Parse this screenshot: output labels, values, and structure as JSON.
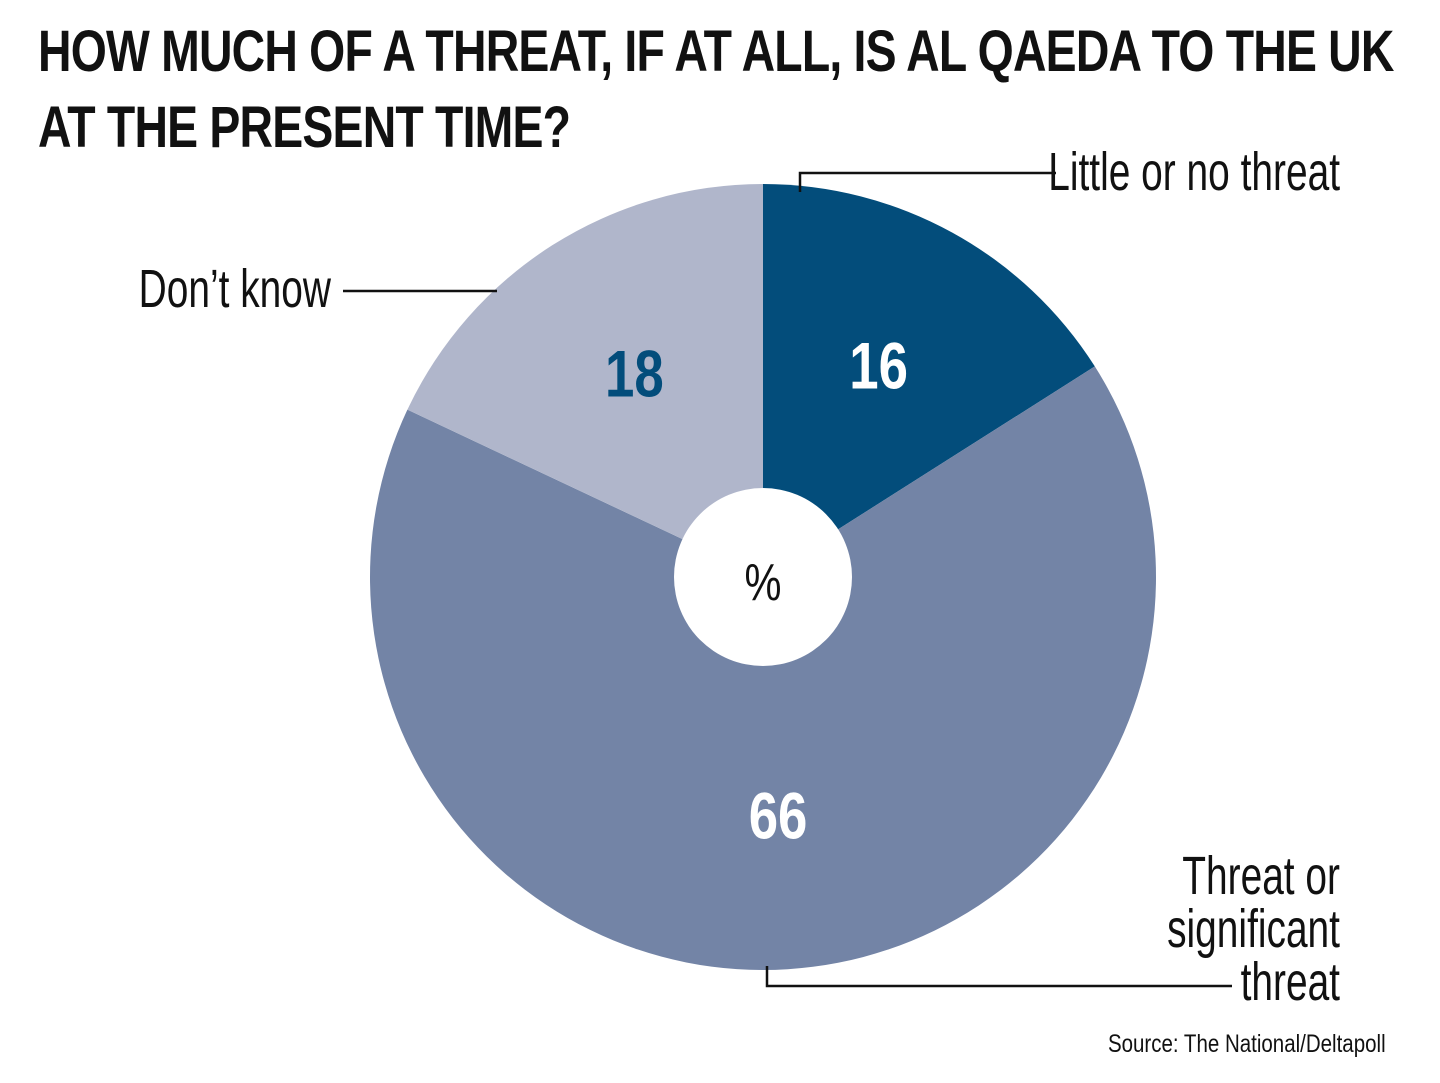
{
  "chart_data": {
    "type": "pie",
    "title": "HOW MUCH OF A THREAT, IF AT ALL, IS AL QAEDA TO THE UK AT THE PRESENT TIME?",
    "center_label": "%",
    "slices": [
      {
        "label": "Little or no threat",
        "value": 16,
        "value_label": "16",
        "color": "#034d7b",
        "label_color": "#ffffff"
      },
      {
        "label": "Threat or significant threat",
        "value": 66,
        "value_label": "66",
        "color": "#7384a6",
        "label_color": "#ffffff"
      },
      {
        "label": "Don’t know",
        "value": 18,
        "value_label": "18",
        "color": "#b0b6cb",
        "label_color": "#034d7b"
      }
    ]
  },
  "labels": {
    "little": "Little or no threat",
    "threat_lines": [
      "Threat or",
      "significant",
      "threat"
    ],
    "dontknow": "Don’t know"
  },
  "source": "Source: The National/Deltapoll"
}
